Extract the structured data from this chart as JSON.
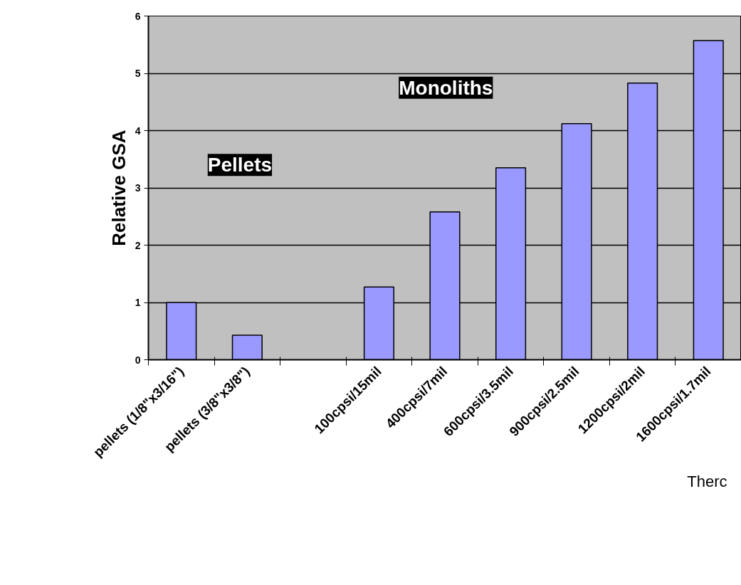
{
  "chart_data": {
    "type": "bar",
    "ylabel": "Relative GSA",
    "categories": [
      "pellets (1/8\"x3/16\")",
      "pellets (3/8\"x3/8\")",
      null,
      "100cpsi/15mil",
      "400cpsi/7mil",
      "600cpsi/3.5mil",
      "900cpsi/2.5mil",
      "1200cpsi/2mil",
      "1600cpsi/1.7mil"
    ],
    "values": [
      1.0,
      0.43,
      null,
      1.27,
      2.58,
      3.35,
      4.12,
      4.83,
      5.57
    ],
    "color": "#9999ff",
    "ylim": [
      0,
      6
    ],
    "yticks": [
      0,
      1,
      2,
      3,
      4,
      5,
      6
    ],
    "grid": "y",
    "annotations": [
      "Pellets",
      "Monoliths",
      "Therc"
    ]
  }
}
